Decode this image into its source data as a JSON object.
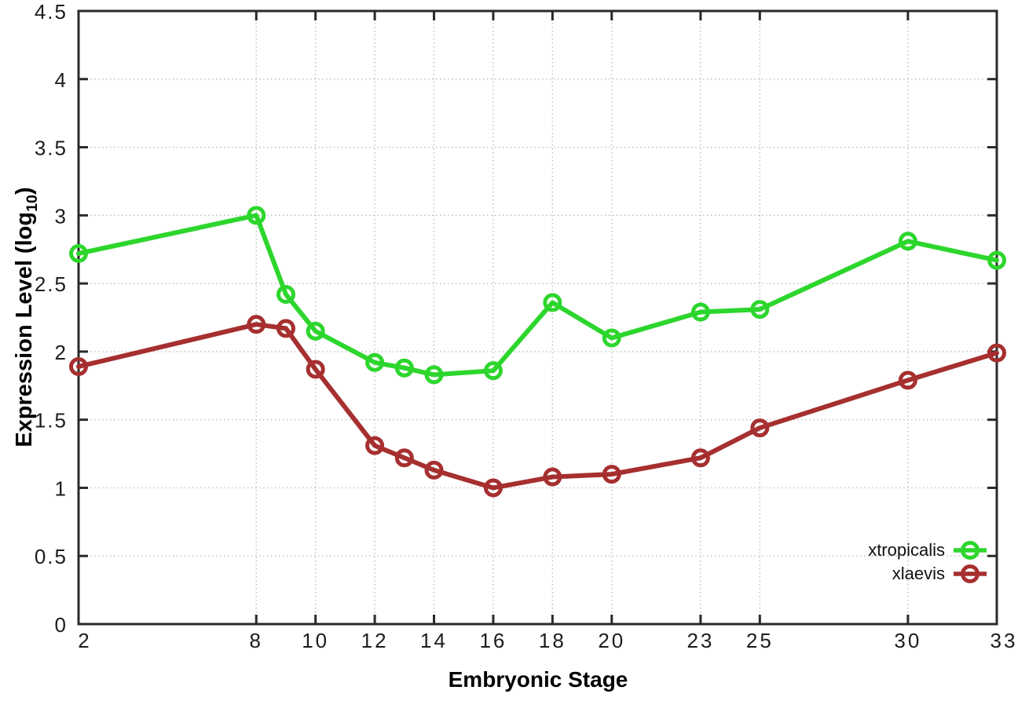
{
  "chart_data": {
    "type": "line",
    "title": "",
    "xlabel": "Embryonic Stage",
    "ylabel": "Expression Level (log10)",
    "ylabel_parts": {
      "main": "Expression Level (log",
      "sub": "10",
      "end": ")"
    },
    "x": [
      2,
      8,
      9,
      10,
      12,
      13,
      14,
      16,
      18,
      20,
      23,
      25,
      30,
      33
    ],
    "xlim": [
      2,
      33
    ],
    "ylim": [
      0,
      4.5
    ],
    "x_tick_values": [
      2,
      8,
      10,
      12,
      14,
      16,
      18,
      20,
      23,
      25,
      30,
      33
    ],
    "x_tick_labels": [
      "2",
      "8",
      "10",
      "12",
      "14",
      "16",
      "18",
      "20",
      "23",
      "25",
      "30",
      "33"
    ],
    "y_tick_values": [
      0,
      0.5,
      1,
      1.5,
      2,
      2.5,
      3,
      3.5,
      4,
      4.5
    ],
    "y_tick_labels": [
      "0",
      "0.5",
      "1",
      "1.5",
      "2",
      "2.5",
      "3",
      "3.5",
      "4",
      "4.5"
    ],
    "grid": true,
    "legend_position": "bottom-right-inside",
    "series": [
      {
        "name": "xtropicalis",
        "color": "#2dd62d",
        "values": [
          2.72,
          3.0,
          2.42,
          2.15,
          1.92,
          1.88,
          1.83,
          1.86,
          2.36,
          2.1,
          2.29,
          2.31,
          2.81,
          2.67
        ]
      },
      {
        "name": "xlaevis",
        "color": "#a62f2f",
        "values": [
          1.89,
          2.2,
          2.17,
          1.87,
          1.31,
          1.22,
          1.13,
          1.0,
          1.08,
          1.1,
          1.22,
          1.44,
          1.79,
          1.99
        ]
      }
    ]
  },
  "colors": {
    "background": "#ffffff",
    "axis": "#2a2a2a",
    "grid": "#bdbdbd",
    "tick_text": "#1c1c1c"
  }
}
